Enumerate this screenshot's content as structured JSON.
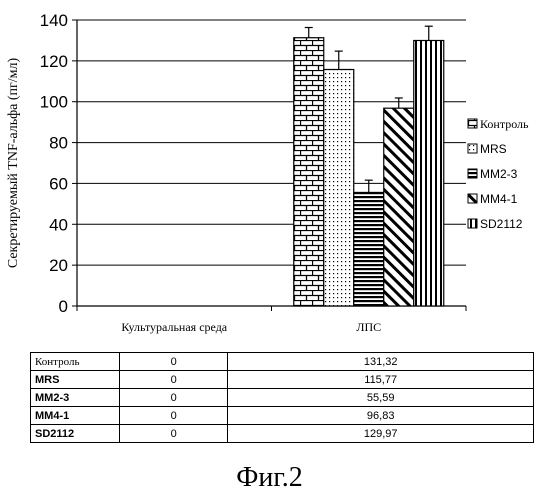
{
  "chart_data": {
    "type": "bar",
    "title": "",
    "ylabel": "Секретируемый TNF-альфа (пг/мл)",
    "xlabel": "",
    "ylim": [
      0,
      140
    ],
    "yticks": [
      0,
      20,
      40,
      60,
      80,
      100,
      120,
      140
    ],
    "grid": true,
    "legend_position": "right",
    "categories": [
      "Культуральная среда",
      "ЛПС"
    ],
    "series": [
      {
        "name": "Контроль",
        "values": [
          0,
          131.32
        ],
        "error": [
          0,
          5
        ],
        "pattern": "brick"
      },
      {
        "name": "MRS",
        "values": [
          0,
          115.77
        ],
        "error": [
          0,
          9
        ],
        "pattern": "dots"
      },
      {
        "name": "MM2-3",
        "values": [
          0,
          55.59
        ],
        "error": [
          0,
          6
        ],
        "pattern": "hlines"
      },
      {
        "name": "MM4-1",
        "values": [
          0,
          96.83
        ],
        "error": [
          0,
          5
        ],
        "pattern": "diagonal"
      },
      {
        "name": "SD2112",
        "values": [
          0,
          129.97
        ],
        "error": [
          0,
          7
        ],
        "pattern": "vlines"
      }
    ]
  },
  "table": {
    "rows": [
      {
        "name": "Контроль",
        "values": [
          "0",
          "131,32"
        ]
      },
      {
        "name": "MRS",
        "values": [
          "0",
          "115,77"
        ]
      },
      {
        "name": "MM2-3",
        "values": [
          "0",
          "55,59"
        ]
      },
      {
        "name": "MM4-1",
        "values": [
          "0",
          "96,83"
        ]
      },
      {
        "name": "SD2112",
        "values": [
          "0",
          "129,97"
        ]
      }
    ]
  },
  "caption": "Фиг.2"
}
